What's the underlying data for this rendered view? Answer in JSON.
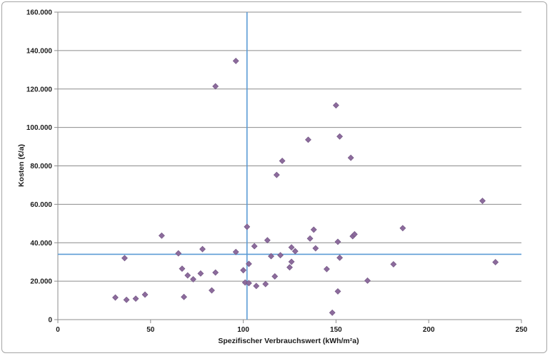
{
  "chart_data": {
    "type": "scatter",
    "title": "",
    "xlabel": "Spezifischer Verbrauchswert (kWh/m²a)",
    "ylabel": "Kosten (€/a)",
    "xlim": [
      0,
      250
    ],
    "ylim": [
      0,
      160000
    ],
    "x_ticks": [
      0,
      50,
      100,
      150,
      200,
      250
    ],
    "y_ticks": [
      0,
      20000,
      40000,
      60000,
      80000,
      100000,
      120000,
      140000,
      160000
    ],
    "x_tick_labels": [
      "0",
      "50",
      "100",
      "150",
      "200",
      "250"
    ],
    "y_tick_labels": [
      "0",
      "20.000",
      "40.000",
      "60.000",
      "80.000",
      "100.000",
      "120.000",
      "140.000",
      "160.000"
    ],
    "grid": "horizontal",
    "legend": "none",
    "reference_lines": {
      "vertical_x": 102,
      "horizontal_y": 34000
    },
    "colors": {
      "marker": "#8c6b9c",
      "reference_line": "#5b9bd5",
      "grid": "#8c8c8c"
    },
    "points": [
      {
        "x": 31,
        "y": 11500
      },
      {
        "x": 36,
        "y": 32000
      },
      {
        "x": 37,
        "y": 10300
      },
      {
        "x": 42,
        "y": 10900
      },
      {
        "x": 47,
        "y": 13000
      },
      {
        "x": 56,
        "y": 43700
      },
      {
        "x": 65,
        "y": 34500
      },
      {
        "x": 67,
        "y": 26500
      },
      {
        "x": 68,
        "y": 11800
      },
      {
        "x": 70,
        "y": 23000
      },
      {
        "x": 73,
        "y": 21000
      },
      {
        "x": 77,
        "y": 24000
      },
      {
        "x": 78,
        "y": 36700
      },
      {
        "x": 83,
        "y": 15200
      },
      {
        "x": 85,
        "y": 24500
      },
      {
        "x": 85,
        "y": 121400
      },
      {
        "x": 96,
        "y": 35200
      },
      {
        "x": 96,
        "y": 134600
      },
      {
        "x": 100,
        "y": 25700
      },
      {
        "x": 101,
        "y": 19300
      },
      {
        "x": 102,
        "y": 48300
      },
      {
        "x": 103,
        "y": 29000
      },
      {
        "x": 103,
        "y": 19000
      },
      {
        "x": 106,
        "y": 38200
      },
      {
        "x": 107,
        "y": 17500
      },
      {
        "x": 112,
        "y": 18500
      },
      {
        "x": 113,
        "y": 41300
      },
      {
        "x": 115,
        "y": 33000
      },
      {
        "x": 117,
        "y": 22500
      },
      {
        "x": 118,
        "y": 75300
      },
      {
        "x": 120,
        "y": 33500
      },
      {
        "x": 121,
        "y": 82600
      },
      {
        "x": 125,
        "y": 27200
      },
      {
        "x": 126,
        "y": 30100
      },
      {
        "x": 126,
        "y": 37600
      },
      {
        "x": 128,
        "y": 35600
      },
      {
        "x": 135,
        "y": 93600
      },
      {
        "x": 136,
        "y": 42200
      },
      {
        "x": 138,
        "y": 46800
      },
      {
        "x": 139,
        "y": 37100
      },
      {
        "x": 145,
        "y": 26300
      },
      {
        "x": 148,
        "y": 3600
      },
      {
        "x": 150,
        "y": 111500
      },
      {
        "x": 151,
        "y": 14700
      },
      {
        "x": 151,
        "y": 40500
      },
      {
        "x": 152,
        "y": 95300
      },
      {
        "x": 152,
        "y": 32200
      },
      {
        "x": 158,
        "y": 84200
      },
      {
        "x": 159,
        "y": 43400
      },
      {
        "x": 160,
        "y": 44400
      },
      {
        "x": 167,
        "y": 20300
      },
      {
        "x": 181,
        "y": 28800
      },
      {
        "x": 186,
        "y": 47600
      },
      {
        "x": 229,
        "y": 61800
      },
      {
        "x": 236,
        "y": 29900
      }
    ]
  }
}
